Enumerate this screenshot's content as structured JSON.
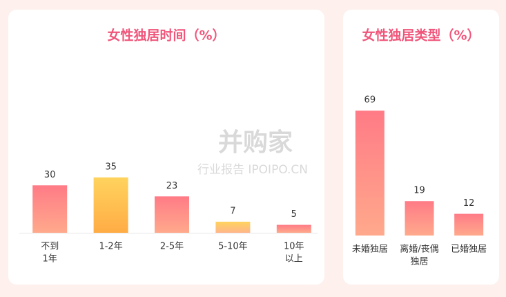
{
  "chart_data": [
    {
      "type": "bar",
      "title": "女性独居时间（%）",
      "categories": [
        [
          "不到",
          "1年"
        ],
        [
          "1-2年"
        ],
        [
          "2-5年"
        ],
        [
          "5-10年"
        ],
        [
          "10年",
          "以上"
        ]
      ],
      "values": [
        30,
        35,
        23,
        7,
        5
      ],
      "colors": [
        [
          "#ff7b86",
          "#ffa98c"
        ],
        [
          "#ffd35e",
          "#ffac45"
        ],
        [
          "#ff7b86",
          "#ffa98c"
        ],
        [
          "#ffd35e",
          "#ffb58a"
        ],
        [
          "#ff7b86",
          "#ffa98c"
        ]
      ]
    },
    {
      "type": "bar",
      "title": "女性独居类型（%）",
      "categories": [
        [
          "未婚独居"
        ],
        [
          "离婚/丧偶",
          "独居"
        ],
        [
          "已婚独居"
        ]
      ],
      "values": [
        69,
        19,
        12
      ],
      "colors": [
        [
          "#ff7b86",
          "#ffa98c"
        ],
        [
          "#ff7b86",
          "#ffa98c"
        ],
        [
          "#ff7b86",
          "#ffa98c"
        ]
      ]
    }
  ],
  "watermark": {
    "brand": "并购家",
    "sub": "行业报告 IPOIPO.CN"
  }
}
